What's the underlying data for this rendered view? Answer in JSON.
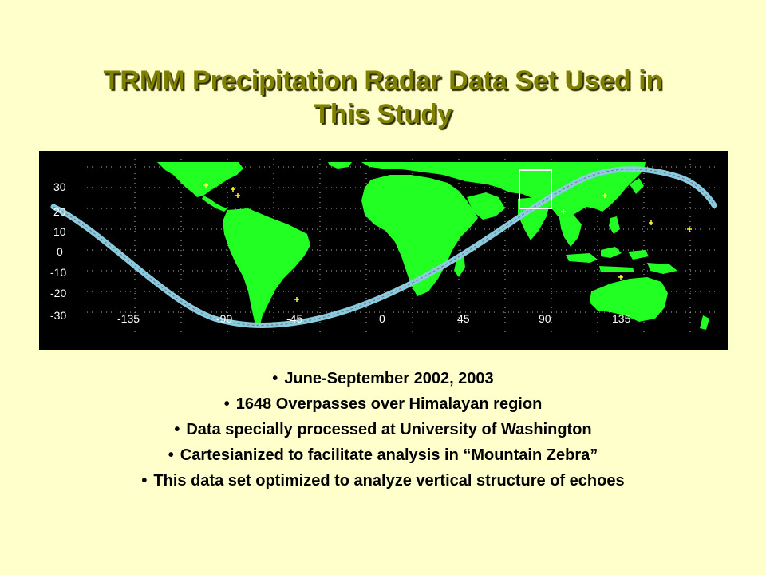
{
  "slide": {
    "title_line1": "TRMM Precipitation Radar Data Set Used in",
    "title_line2": "This Study",
    "bullet_char": "•",
    "bullets": [
      "June-September 2002, 2003",
      "1648 Overpasses over Himalayan region",
      "Data specially processed at University of Washington",
      "Cartesianized to facilitate analysis in “Mountain Zebra”",
      "This data set optimized to analyze vertical structure of echoes"
    ]
  },
  "map": {
    "background_color": "#000000",
    "land_color": "#22FF22",
    "track_color": "#88CCDD",
    "box_color": "#FFFFFF",
    "marker_color": "#FFFF33",
    "lat_labels": [
      "30",
      "20",
      "10",
      "0",
      "-10",
      "-20",
      "-30"
    ],
    "lon_labels": [
      "-135",
      "-90",
      "-45",
      "0",
      "45",
      "90",
      "135"
    ]
  }
}
